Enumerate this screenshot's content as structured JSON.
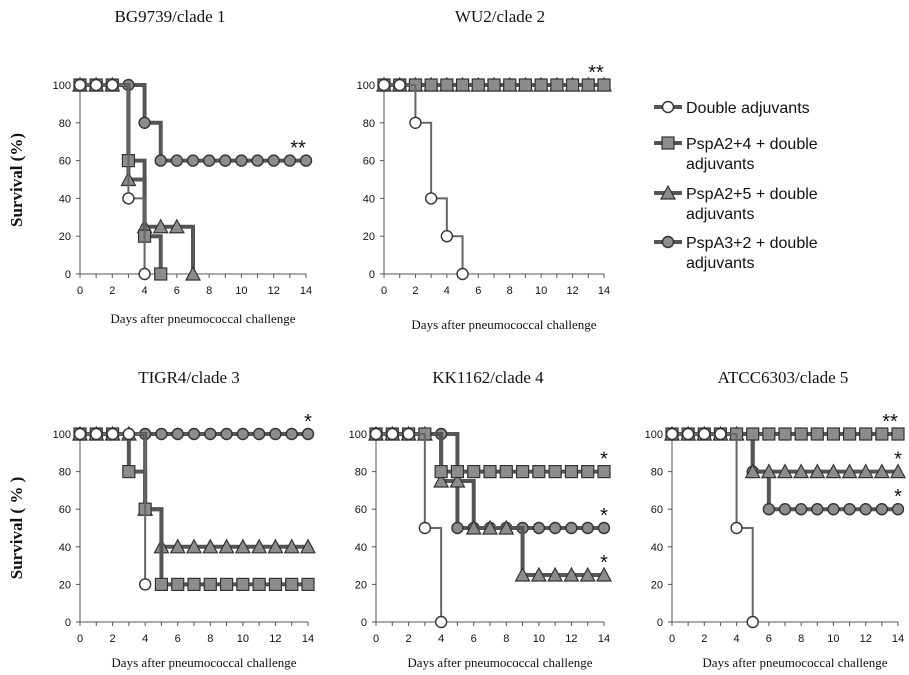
{
  "series_styles": [
    {
      "name": "Double adjuvants",
      "marker": "circle",
      "fill": "#ffffff",
      "stroke": "#333333"
    },
    {
      "name": "PspA2+4 + double adjuvants",
      "marker": "square",
      "fill": "#8c8c8c",
      "stroke": "#333333"
    },
    {
      "name": "PspA2+5 + double adjuvants",
      "marker": "triangle",
      "fill": "#8c8c8c",
      "stroke": "#333333"
    },
    {
      "name": "PspA3+2 + double adjuvants",
      "marker": "circle",
      "fill": "#8c8c8c",
      "stroke": "#333333"
    }
  ],
  "legend": {
    "entries": [
      {
        "lines": [
          "Double adjuvants"
        ],
        "marker": "circle",
        "fill": "#ffffff"
      },
      {
        "lines": [
          "PspA2+4 + double",
          "adjuvants"
        ],
        "marker": "square",
        "fill": "#8c8c8c"
      },
      {
        "lines": [
          "PspA2+5 + double",
          "adjuvants"
        ],
        "marker": "triangle",
        "fill": "#8c8c8c"
      },
      {
        "lines": [
          "PspA3+2 + double",
          "adjuvants"
        ],
        "marker": "circle",
        "fill": "#8c8c8c"
      }
    ]
  },
  "chart_data": [
    {
      "type": "line",
      "title": "BG9739/clade 1",
      "xlabel": "Days after pneumococcal challenge",
      "ylabel": "Survival (%)",
      "xlim": [
        0,
        14
      ],
      "ylim": [
        0,
        100
      ],
      "xticks": [
        0,
        2,
        4,
        6,
        8,
        10,
        12,
        14
      ],
      "yticks": [
        0,
        20,
        40,
        60,
        80,
        100
      ],
      "series": [
        {
          "name": "Double adjuvants",
          "x": [
            0,
            1,
            2,
            3,
            4
          ],
          "y": [
            100,
            100,
            100,
            40,
            0
          ]
        },
        {
          "name": "PspA2+4 + double adjuvants",
          "x": [
            0,
            1,
            2,
            3,
            4,
            5
          ],
          "y": [
            100,
            100,
            100,
            60,
            20,
            0
          ]
        },
        {
          "name": "PspA2+5 + double adjuvants",
          "x": [
            0,
            1,
            2,
            3,
            4,
            5,
            6,
            7
          ],
          "y": [
            100,
            100,
            100,
            50,
            25,
            25,
            25,
            0
          ]
        },
        {
          "name": "PspA3+2 + double adjuvants",
          "x": [
            0,
            1,
            2,
            3,
            4,
            5,
            6,
            7,
            8,
            9,
            10,
            11,
            12,
            13,
            14
          ],
          "y": [
            100,
            100,
            100,
            100,
            80,
            60,
            60,
            60,
            60,
            60,
            60,
            60,
            60,
            60,
            60
          ]
        }
      ],
      "annotations": [
        {
          "text": "**",
          "x": 14,
          "y": 60
        }
      ]
    },
    {
      "type": "line",
      "title": "WU2/clade 2",
      "xlabel": "Days after pneumococcal challenge",
      "ylabel": "",
      "xlim": [
        0,
        14
      ],
      "ylim": [
        0,
        100
      ],
      "xticks": [
        0,
        2,
        4,
        6,
        8,
        10,
        12,
        14
      ],
      "yticks": [
        0,
        20,
        40,
        60,
        80,
        100
      ],
      "series": [
        {
          "name": "Double adjuvants",
          "x": [
            0,
            1,
            2,
            3,
            4,
            5
          ],
          "y": [
            100,
            100,
            80,
            40,
            20,
            0
          ]
        },
        {
          "name": "PspA2+4 + double adjuvants",
          "x": [
            0,
            1,
            2,
            3,
            4,
            5,
            6,
            7,
            8,
            9,
            10,
            11,
            12,
            13,
            14
          ],
          "y": [
            100,
            100,
            100,
            100,
            100,
            100,
            100,
            100,
            100,
            100,
            100,
            100,
            100,
            100,
            100
          ]
        },
        {
          "name": "PspA2+5 + double adjuvants",
          "x": [
            0,
            1,
            2,
            3,
            4,
            5,
            6,
            7,
            8,
            9,
            10,
            11,
            12,
            13,
            14
          ],
          "y": [
            100,
            100,
            100,
            100,
            100,
            100,
            100,
            100,
            100,
            100,
            100,
            100,
            100,
            100,
            100
          ]
        },
        {
          "name": "PspA3+2 + double adjuvants",
          "x": [
            0,
            1,
            2,
            3,
            4,
            5,
            6,
            7,
            8,
            9,
            10,
            11,
            12,
            13,
            14
          ],
          "y": [
            100,
            100,
            100,
            100,
            100,
            100,
            100,
            100,
            100,
            100,
            100,
            100,
            100,
            100,
            100
          ]
        }
      ],
      "annotations": [
        {
          "text": "**",
          "x": 14,
          "y": 100
        }
      ]
    },
    {
      "type": "line",
      "title": "TIGR4/clade 3",
      "xlabel": "Days after pneumococcal challenge",
      "ylabel": "Survival ( % )",
      "xlim": [
        0,
        14
      ],
      "ylim": [
        0,
        100
      ],
      "xticks": [
        0,
        2,
        4,
        6,
        8,
        10,
        12,
        14
      ],
      "yticks": [
        0,
        20,
        40,
        60,
        80,
        100
      ],
      "series": [
        {
          "name": "Double adjuvants",
          "x": [
            0,
            1,
            2,
            3,
            4
          ],
          "y": [
            100,
            100,
            100,
            100,
            20
          ]
        },
        {
          "name": "PspA2+4 + double adjuvants",
          "x": [
            0,
            1,
            2,
            3,
            4,
            5,
            6,
            7,
            8,
            9,
            10,
            11,
            12,
            13,
            14
          ],
          "y": [
            100,
            100,
            100,
            80,
            60,
            20,
            20,
            20,
            20,
            20,
            20,
            20,
            20,
            20,
            20
          ]
        },
        {
          "name": "PspA2+5 + double adjuvants",
          "x": [
            0,
            1,
            2,
            3,
            4,
            5,
            6,
            7,
            8,
            9,
            10,
            11,
            12,
            13,
            14
          ],
          "y": [
            100,
            100,
            100,
            100,
            60,
            40,
            40,
            40,
            40,
            40,
            40,
            40,
            40,
            40,
            40
          ]
        },
        {
          "name": "PspA3+2 + double adjuvants",
          "x": [
            0,
            1,
            2,
            3,
            4,
            5,
            6,
            7,
            8,
            9,
            10,
            11,
            12,
            13,
            14
          ],
          "y": [
            100,
            100,
            100,
            100,
            100,
            100,
            100,
            100,
            100,
            100,
            100,
            100,
            100,
            100,
            100
          ]
        }
      ],
      "annotations": [
        {
          "text": "*",
          "x": 14,
          "y": 100
        }
      ]
    },
    {
      "type": "line",
      "title": "KK1162/clade 4",
      "xlabel": "Days after pneumococcal challenge",
      "ylabel": "",
      "xlim": [
        0,
        14
      ],
      "ylim": [
        0,
        100
      ],
      "xticks": [
        0,
        2,
        4,
        6,
        8,
        10,
        12,
        14
      ],
      "yticks": [
        0,
        20,
        40,
        60,
        80,
        100
      ],
      "series": [
        {
          "name": "Double adjuvants",
          "x": [
            0,
            1,
            2,
            3,
            4
          ],
          "y": [
            100,
            100,
            100,
            50,
            0
          ]
        },
        {
          "name": "PspA2+4 + double adjuvants",
          "x": [
            0,
            1,
            2,
            3,
            4,
            5,
            6,
            7,
            8,
            9,
            10,
            11,
            12,
            13,
            14
          ],
          "y": [
            100,
            100,
            100,
            100,
            80,
            80,
            80,
            80,
            80,
            80,
            80,
            80,
            80,
            80,
            80
          ]
        },
        {
          "name": "PspA2+5 + double adjuvants",
          "x": [
            0,
            1,
            2,
            3,
            4,
            5,
            6,
            7,
            8,
            9,
            10,
            11,
            12,
            13,
            14
          ],
          "y": [
            100,
            100,
            100,
            100,
            75,
            75,
            50,
            50,
            50,
            25,
            25,
            25,
            25,
            25,
            25
          ]
        },
        {
          "name": "PspA3+2 + double adjuvants",
          "x": [
            0,
            1,
            2,
            3,
            4,
            5,
            6,
            7,
            8,
            9,
            10,
            11,
            12,
            13,
            14
          ],
          "y": [
            100,
            100,
            100,
            100,
            100,
            50,
            50,
            50,
            50,
            50,
            50,
            50,
            50,
            50,
            50
          ]
        }
      ],
      "annotations": [
        {
          "text": "*",
          "x": 14,
          "y": 80
        },
        {
          "text": "*",
          "x": 14,
          "y": 50
        },
        {
          "text": "*",
          "x": 14,
          "y": 25
        }
      ]
    },
    {
      "type": "line",
      "title": "ATCC6303/clade 5",
      "xlabel": "Days after pneumococcal challenge",
      "ylabel": "",
      "xlim": [
        0,
        14
      ],
      "ylim": [
        0,
        100
      ],
      "xticks": [
        0,
        2,
        4,
        6,
        8,
        10,
        12,
        14
      ],
      "yticks": [
        0,
        20,
        40,
        60,
        80,
        100
      ],
      "series": [
        {
          "name": "Double adjuvants",
          "x": [
            0,
            1,
            2,
            3,
            4,
            5
          ],
          "y": [
            100,
            100,
            100,
            100,
            50,
            0
          ]
        },
        {
          "name": "PspA2+4 + double adjuvants",
          "x": [
            0,
            1,
            2,
            3,
            4,
            5,
            6,
            7,
            8,
            9,
            10,
            11,
            12,
            13,
            14
          ],
          "y": [
            100,
            100,
            100,
            100,
            100,
            100,
            100,
            100,
            100,
            100,
            100,
            100,
            100,
            100,
            100
          ]
        },
        {
          "name": "PspA2+5 + double adjuvants",
          "x": [
            0,
            1,
            2,
            3,
            4,
            5,
            6,
            7,
            8,
            9,
            10,
            11,
            12,
            13,
            14
          ],
          "y": [
            100,
            100,
            100,
            100,
            100,
            80,
            80,
            80,
            80,
            80,
            80,
            80,
            80,
            80,
            80
          ]
        },
        {
          "name": "PspA3+2 + double adjuvants",
          "x": [
            0,
            1,
            2,
            3,
            4,
            5,
            6,
            7,
            8,
            9,
            10,
            11,
            12,
            13,
            14
          ],
          "y": [
            100,
            100,
            100,
            100,
            100,
            80,
            60,
            60,
            60,
            60,
            60,
            60,
            60,
            60,
            60
          ]
        }
      ],
      "annotations": [
        {
          "text": "**",
          "x": 14,
          "y": 100
        },
        {
          "text": "*",
          "x": 14,
          "y": 80
        },
        {
          "text": "*",
          "x": 14,
          "y": 60
        }
      ]
    }
  ]
}
